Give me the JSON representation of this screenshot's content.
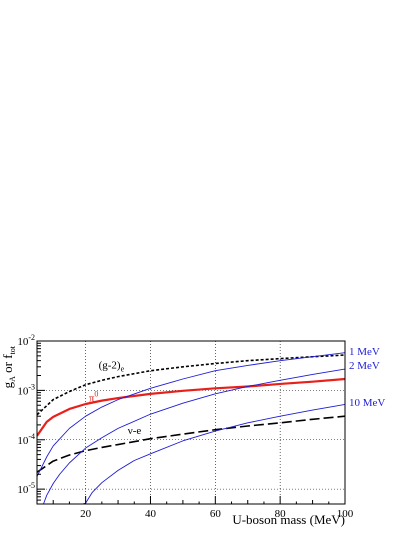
{
  "chart_data": {
    "type": "line",
    "xlabel": "U-boson mass (MeV)",
    "ylabel": "g_A or f_tot",
    "log_y": true,
    "xlim": [
      5,
      100
    ],
    "ylim": [
      5e-06,
      0.01
    ],
    "grid": true,
    "x_ticks": [
      {
        "value": 20,
        "label": "20"
      },
      {
        "value": 40,
        "label": "40"
      },
      {
        "value": 60,
        "label": "60"
      },
      {
        "value": 80,
        "label": "80"
      },
      {
        "value": 100,
        "label": "100"
      }
    ],
    "y_ticks": [
      {
        "value": 1e-05,
        "base": "10",
        "exp": "-5"
      },
      {
        "value": 0.0001,
        "base": "10",
        "exp": "-4"
      },
      {
        "value": 0.001,
        "base": "10",
        "exp": "-3"
      },
      {
        "value": 0.01,
        "base": "10",
        "exp": "-2"
      }
    ],
    "series": [
      {
        "name": "(g-2)e",
        "label_main": "(g-2)",
        "label_sub": "e",
        "label_at": [
          24,
          0.0028
        ],
        "color": "#000000",
        "style": "dotted",
        "x": [
          5,
          10,
          15,
          20,
          25,
          30,
          40,
          50,
          60,
          70,
          80,
          90,
          100
        ],
        "y": [
          0.00032,
          0.00065,
          0.00095,
          0.0013,
          0.0016,
          0.0019,
          0.0025,
          0.003,
          0.0035,
          0.004,
          0.0044,
          0.0048,
          0.0052
        ]
      },
      {
        "name": "π0",
        "label_main": "π",
        "label_sup": "0",
        "label_at": [
          21,
          0.0006
        ],
        "color": "#e8201a",
        "style": "solid-thick",
        "x": [
          5,
          8,
          10,
          15,
          20,
          25,
          30,
          40,
          50,
          60,
          70,
          80,
          90,
          100
        ],
        "y": [
          0.00012,
          0.00023,
          0.00029,
          0.00042,
          0.00053,
          0.00062,
          0.0007,
          0.00085,
          0.00098,
          0.0011,
          0.0012,
          0.00135,
          0.0015,
          0.0017
        ]
      },
      {
        "name": "ν-e",
        "label_main": "ν-e",
        "label_at": [
          33,
          0.00013
        ],
        "color": "#000000",
        "style": "dashed",
        "x": [
          5,
          10,
          15,
          20,
          25,
          30,
          40,
          50,
          60,
          70,
          80,
          90,
          100
        ],
        "y": [
          2.2e-05,
          3.7e-05,
          4.9e-05,
          6e-05,
          7e-05,
          8e-05,
          0.000105,
          0.00013,
          0.00016,
          0.00019,
          0.00022,
          0.00026,
          0.0003
        ]
      },
      {
        "name": "1 MeV",
        "label_main": "1 MeV",
        "color": "#1d1dd6",
        "style": "solid-thin",
        "x": [
          5,
          8,
          10,
          15,
          20,
          25,
          30,
          40,
          50,
          60,
          70,
          80,
          90,
          100
        ],
        "y": [
          1.8e-05,
          4.5e-05,
          7.5e-05,
          0.00017,
          0.0003,
          0.00046,
          0.00065,
          0.0011,
          0.0017,
          0.0025,
          0.0032,
          0.004,
          0.0048,
          0.0058
        ]
      },
      {
        "name": "2 MeV",
        "label_main": "2 MeV",
        "color": "#1d1dd6",
        "style": "solid-thin",
        "x": [
          7,
          8,
          10,
          12,
          15,
          20,
          25,
          30,
          40,
          50,
          60,
          70,
          80,
          90,
          100
        ],
        "y": [
          5e-06,
          7.5e-06,
          1.3e-05,
          2e-05,
          3.4e-05,
          6.8e-05,
          0.00011,
          0.00017,
          0.00033,
          0.00055,
          0.00085,
          0.0012,
          0.0016,
          0.0021,
          0.0027
        ]
      },
      {
        "name": "10 MeV",
        "label_main": "10 MeV",
        "color": "#1d1dd6",
        "style": "solid-thin",
        "x": [
          19,
          20,
          22,
          25,
          30,
          35,
          40,
          50,
          60,
          70,
          80,
          90,
          100
        ],
        "y": [
          5e-06,
          5.2e-06,
          8.5e-06,
          1.35e-05,
          2.4e-05,
          3.8e-05,
          5.2e-05,
          9.5e-05,
          0.00015,
          0.00022,
          0.0003,
          0.0004,
          0.00052
        ]
      }
    ]
  }
}
